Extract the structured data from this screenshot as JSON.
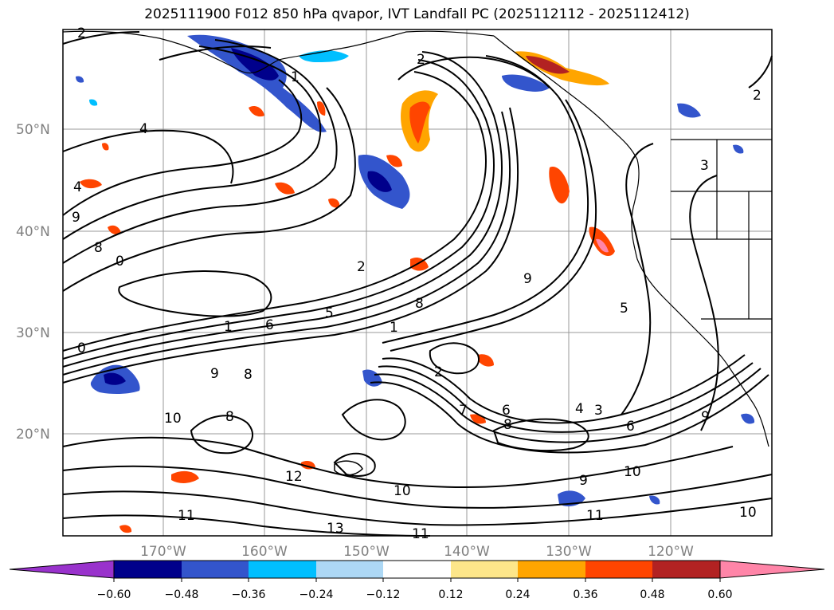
{
  "title": "2025111900 F012 850 hPa qvapor, IVT Landfall PC (2025112112 - 2025112412)",
  "map": {
    "lat_labels": [
      "50°N",
      "40°N",
      "30°N",
      "20°N"
    ],
    "lon_labels": [
      "170°W",
      "160°W",
      "150°W",
      "140°W",
      "130°W",
      "120°W"
    ],
    "contour_labels": [
      "2",
      "4",
      "1",
      "2",
      "4",
      "9",
      "8",
      "0",
      "2",
      "9",
      "8",
      "1",
      "6",
      "5",
      "0",
      "9",
      "8",
      "10",
      "2",
      "7",
      "6",
      "8",
      "4",
      "3",
      "6",
      "9",
      "12",
      "10",
      "11",
      "13",
      "11",
      "10",
      "11",
      "9",
      "10",
      "8",
      "2",
      "3",
      "1",
      "5"
    ],
    "colors": {
      "coast": "#000000",
      "grid": "#808080"
    }
  },
  "colorbar": {
    "tick_labels": [
      "−0.60",
      "−0.48",
      "−0.36",
      "−0.24",
      "−0.12",
      "0.12",
      "0.24",
      "0.36",
      "0.48",
      "0.60"
    ],
    "bins": [
      "#9932cc",
      "#00008b",
      "#3355cc",
      "#00bfff",
      "#add8f5",
      "#ffffff",
      "#fde68a",
      "#ffa500",
      "#ff4500",
      "#b22222",
      "#ff85a8"
    ]
  }
}
